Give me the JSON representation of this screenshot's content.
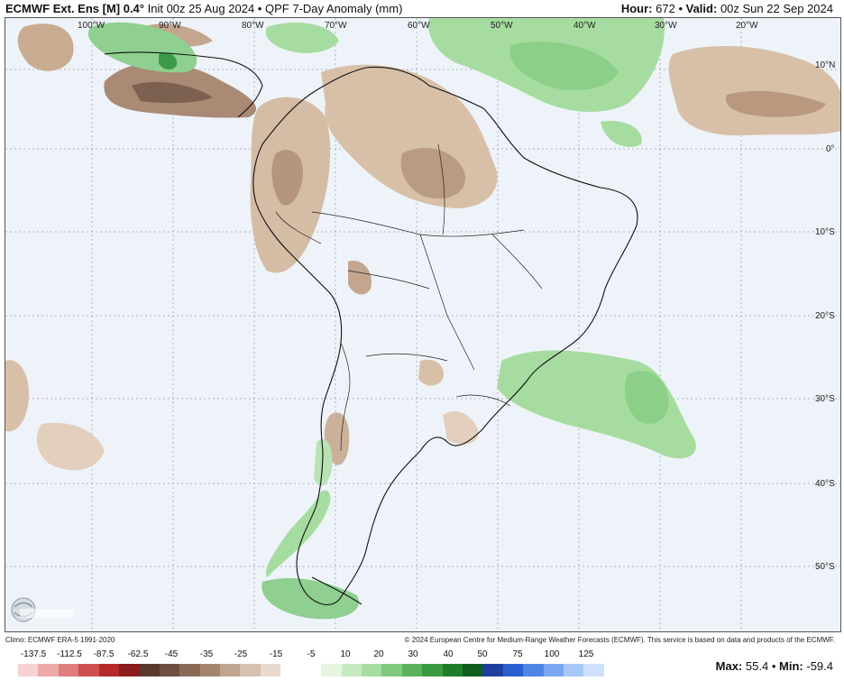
{
  "header": {
    "model": "ECMWF Ext. Ens [M] 0.4°",
    "init": "Init 00z 25 Aug 2024",
    "product": "QPF 7-Day Anomaly (mm)",
    "hour_label": "Hour:",
    "hour": "672",
    "valid_label": "Valid:",
    "valid": "00z Sun 22 Sep 2024"
  },
  "map": {
    "lon_labels": [
      "100°W",
      "90°W",
      "80°W",
      "70°W",
      "60°W",
      "50°W",
      "40°W",
      "30°W",
      "20°W"
    ],
    "lat_labels": [
      "10°N",
      "0°",
      "10°S",
      "20°S",
      "30°S",
      "40°S",
      "50°S"
    ],
    "region": "South America",
    "colors": {
      "ocean": "#eef3f9",
      "dry": "#c9a98a",
      "dry_strong": "#8b6a55",
      "wet": "#8fcf8f",
      "wet_strong": "#3a9a4a"
    }
  },
  "footer": {
    "climo": "Climo: ECMWF ERA-5 1991-2020",
    "copyright": "© 2024 European Centre for Medium-Range Weather Forecasts (ECMWF). This service is based on data and products of the ECMWF."
  },
  "scale": {
    "labels": [
      "-137.5",
      "-112.5",
      "-87.5",
      "-62.5",
      "-45",
      "-35",
      "-25",
      "-15",
      "-5",
      "10",
      "20",
      "30",
      "40",
      "50",
      "75",
      "100",
      "125"
    ],
    "colors": [
      "#f7d2d2",
      "#eea9a9",
      "#e07d7d",
      "#cf4f4f",
      "#b52a2a",
      "#8c1d1d",
      "#5a3a2f",
      "#6e5040",
      "#8a6a57",
      "#a58570",
      "#bfa48f",
      "#d6c1b0",
      "#e8dace",
      "#ffffff",
      "#ffffff",
      "#e6f5e0",
      "#c8eac0",
      "#a6dca0",
      "#80c97f",
      "#5ab35c",
      "#3a9a40",
      "#1f7d2a",
      "#0f5e1e",
      "#1f3f9f",
      "#2a5fd0",
      "#4f86e6",
      "#7aa8f0",
      "#a7c8f6",
      "#cfe1fa"
    ]
  },
  "stats": {
    "max_label": "Max:",
    "max": "55.4",
    "min_label": "Min:",
    "min": "-59.4"
  },
  "logo": {
    "text": "WeatherBELL"
  }
}
